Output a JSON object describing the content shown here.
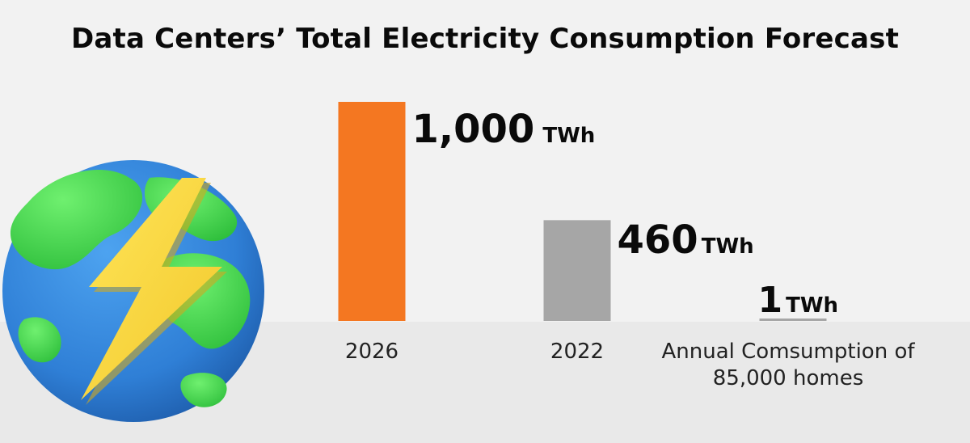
{
  "chart_data": {
    "type": "bar",
    "title": "Data Centers’ Total Electricity Consumption Forecast",
    "categories": [
      "2026",
      "2022",
      "Annual Comsumption of\n85,000 homes"
    ],
    "values": [
      1000,
      460,
      1
    ],
    "unit": "TWh",
    "value_labels": [
      "1,000",
      "460",
      "1"
    ],
    "bar_colors": [
      "#f47721",
      "#a6a6a6",
      "#a6a6a6"
    ],
    "ylim": [
      0,
      1000
    ],
    "grid": false,
    "legend": "none"
  },
  "illustration": {
    "icon": "globe-with-lightning-icon",
    "colors": {
      "ocean": "#2f7fd6",
      "land": "#3fd44a",
      "bolt": "#f7d93b"
    }
  }
}
